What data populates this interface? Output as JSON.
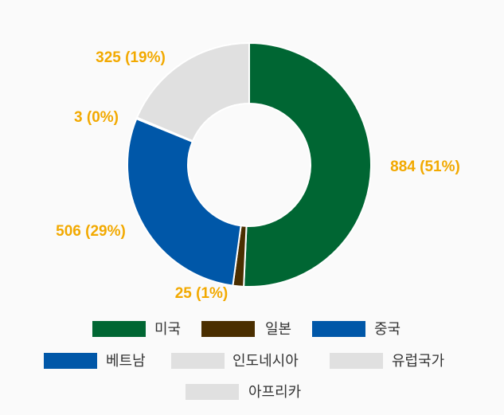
{
  "chart_data": {
    "type": "pie",
    "donut": true,
    "categories": [
      "미국",
      "일본",
      "중국",
      "베트남",
      "인도네시아",
      "유럽국가",
      "아프리카"
    ],
    "values": [
      884,
      25,
      506,
      0,
      3,
      325,
      0
    ],
    "data_labels": [
      "884 (51%)",
      "25 (1%)",
      "506 (29%)",
      "",
      "3 (0%)",
      "325 (19%)",
      ""
    ],
    "colors": [
      "#006633",
      "#4a2e00",
      "#0057a8",
      "#0057a8",
      "#e0e0e0",
      "#e0e0e0",
      "#e0e0e0"
    ],
    "label_color": "#f2a900",
    "legend_position": "bottom"
  }
}
